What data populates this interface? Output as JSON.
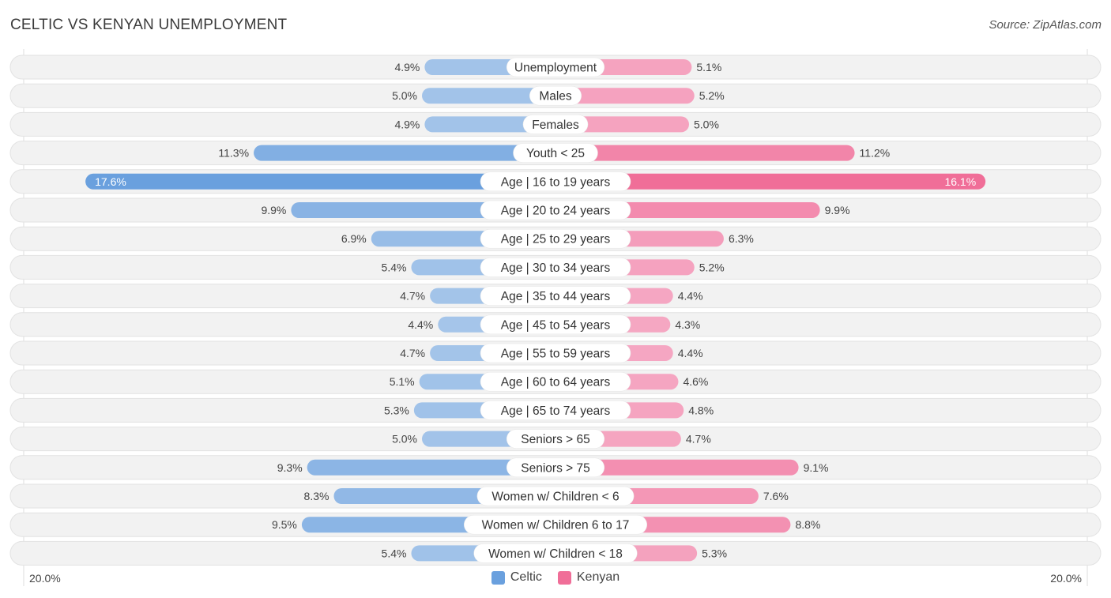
{
  "header": {
    "title": "CELTIC VS KENYAN UNEMPLOYMENT",
    "source": "Source: ZipAtlas.com"
  },
  "axis": {
    "left_label": "20.0%",
    "right_label": "20.0%"
  },
  "legend": {
    "celtic": "Celtic",
    "kenyan": "Kenyan"
  },
  "colors": {
    "celtic_light": "#a7c6ea",
    "celtic_dark": "#6aa0de",
    "kenyan_light": "#f5a8c3",
    "kenyan_dark": "#f06e98",
    "row_bg": "#f2f2f2"
  },
  "chart_data": {
    "type": "bar",
    "orientation": "horizontal-diverging",
    "title": "CELTIC VS KENYAN UNEMPLOYMENT",
    "xlim": [
      -20,
      20
    ],
    "unit": "%",
    "categories": [
      "Unemployment",
      "Males",
      "Females",
      "Youth < 25",
      "Age | 16 to 19 years",
      "Age | 20 to 24 years",
      "Age | 25 to 29 years",
      "Age | 30 to 34 years",
      "Age | 35 to 44 years",
      "Age | 45 to 54 years",
      "Age | 55 to 59 years",
      "Age | 60 to 64 years",
      "Age | 65 to 74 years",
      "Seniors > 65",
      "Seniors > 75",
      "Women w/ Children < 6",
      "Women w/ Children 6 to 17",
      "Women w/ Children < 18"
    ],
    "series": [
      {
        "name": "Celtic",
        "values": [
          4.9,
          5.0,
          4.9,
          11.3,
          17.6,
          9.9,
          6.9,
          5.4,
          4.7,
          4.4,
          4.7,
          5.1,
          5.3,
          5.0,
          9.3,
          8.3,
          9.5,
          5.4
        ]
      },
      {
        "name": "Kenyan",
        "values": [
          5.1,
          5.2,
          5.0,
          11.2,
          16.1,
          9.9,
          6.3,
          5.2,
          4.4,
          4.3,
          4.4,
          4.6,
          4.8,
          4.7,
          9.1,
          7.6,
          8.8,
          5.3
        ]
      }
    ],
    "value_labels": {
      "Celtic": [
        "4.9%",
        "5.0%",
        "4.9%",
        "11.3%",
        "17.6%",
        "9.9%",
        "6.9%",
        "5.4%",
        "4.7%",
        "4.4%",
        "4.7%",
        "5.1%",
        "5.3%",
        "5.0%",
        "9.3%",
        "8.3%",
        "9.5%",
        "5.4%"
      ],
      "Kenyan": [
        "5.1%",
        "5.2%",
        "5.0%",
        "11.2%",
        "16.1%",
        "9.9%",
        "6.3%",
        "5.2%",
        "4.4%",
        "4.3%",
        "4.4%",
        "4.6%",
        "4.8%",
        "4.7%",
        "9.1%",
        "7.6%",
        "8.8%",
        "5.3%"
      ]
    },
    "legend": [
      "Celtic",
      "Kenyan"
    ]
  }
}
